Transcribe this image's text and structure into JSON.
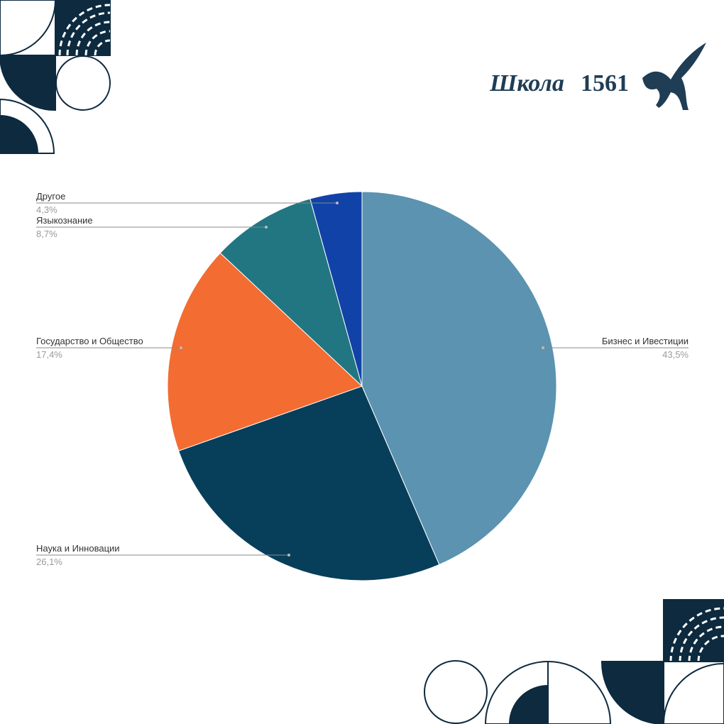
{
  "logo": {
    "word": "Школа",
    "number": "1561"
  },
  "chart_data": {
    "type": "pie",
    "categories": [
      "Бизнес и Ивестиции",
      "Наука и Инновации",
      "Государство и Общество",
      "Языкознание",
      "Другое"
    ],
    "values": [
      43.5,
      26.1,
      17.4,
      8.7,
      4.3
    ],
    "value_labels": [
      "43,5%",
      "26,1%",
      "17,4%",
      "8,7%",
      "4,3%"
    ],
    "colors": [
      "#5b93b0",
      "#073f5b",
      "#f36c32",
      "#217682",
      "#1142a8"
    ]
  }
}
